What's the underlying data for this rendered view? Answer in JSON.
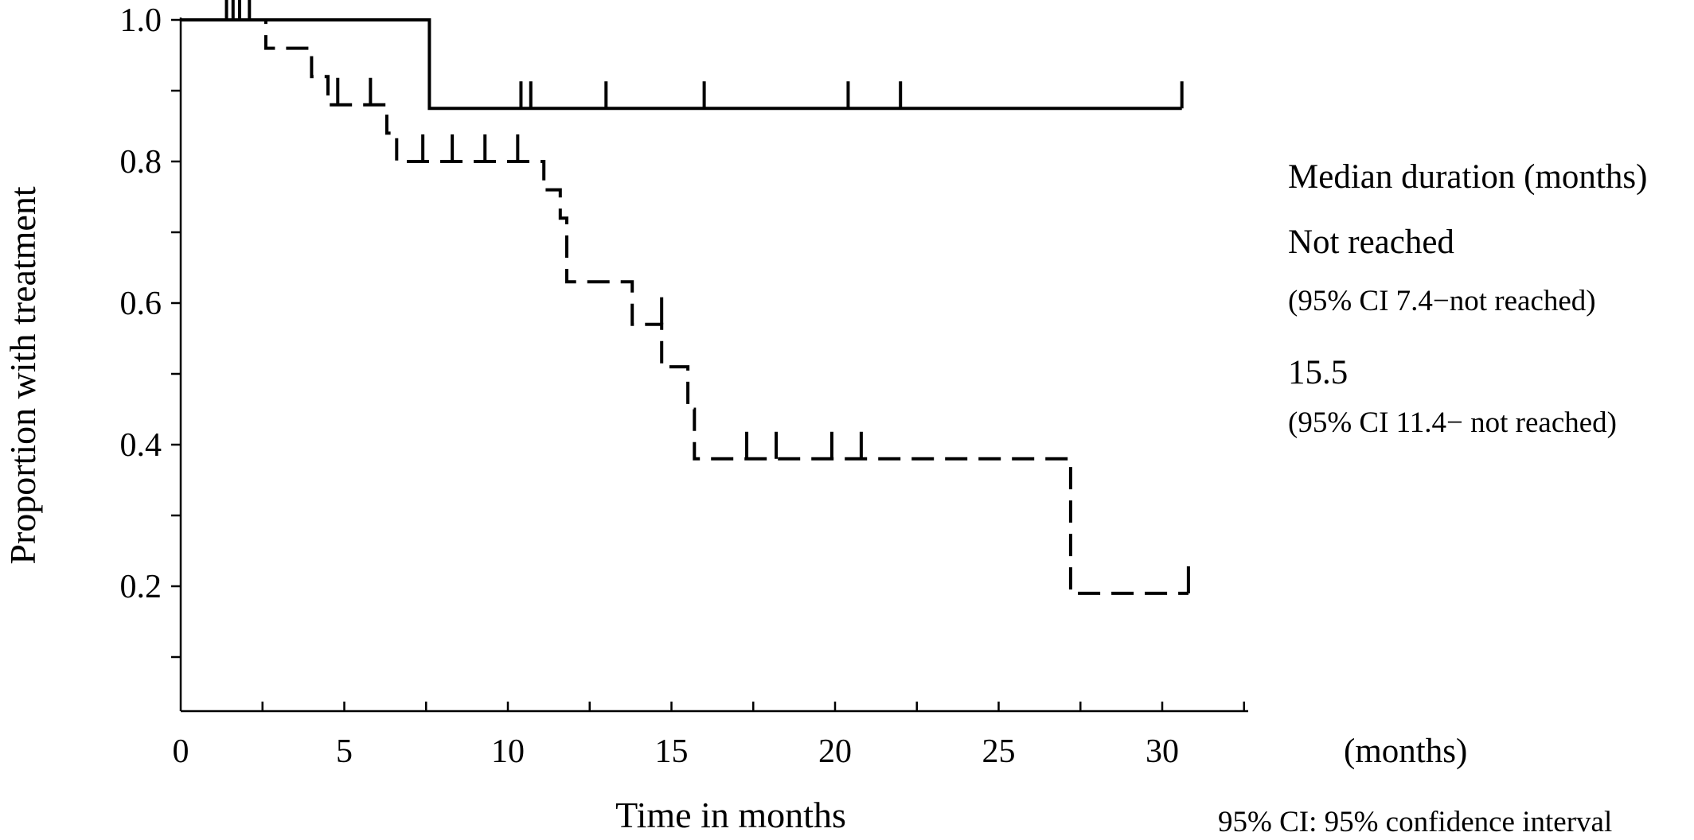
{
  "chart_data": {
    "type": "line",
    "xlabel": "Time in months",
    "ylabel": "Proportion with treatment",
    "xlim": [
      0,
      33
    ],
    "ylim": [
      0.02,
      1.0
    ],
    "x_ticks": [
      "0",
      "5",
      "10",
      "15",
      "20",
      "25",
      "30"
    ],
    "y_ticks": [
      "0.2",
      "0.4",
      "0.6",
      "0.8",
      "1.0"
    ],
    "grid": false,
    "series": [
      {
        "style": "solid",
        "steps": [
          [
            0,
            1.0
          ],
          [
            7.6,
            1.0
          ],
          [
            7.6,
            0.875
          ],
          [
            30.6,
            0.875
          ]
        ],
        "censored": [
          {
            "x": 1.4,
            "y": 1.0
          },
          {
            "x": 1.6,
            "y": 1.0
          },
          {
            "x": 1.8,
            "y": 1.0
          },
          {
            "x": 2.1,
            "y": 1.0
          },
          {
            "x": 10.4,
            "y": 0.875
          },
          {
            "x": 10.7,
            "y": 0.875
          },
          {
            "x": 13.0,
            "y": 0.875
          },
          {
            "x": 16.0,
            "y": 0.875
          },
          {
            "x": 20.4,
            "y": 0.875
          },
          {
            "x": 22.0,
            "y": 0.875
          },
          {
            "x": 30.6,
            "y": 0.875
          }
        ]
      },
      {
        "style": "dashed",
        "steps": [
          [
            0,
            1.0
          ],
          [
            2.6,
            1.0
          ],
          [
            2.6,
            0.96
          ],
          [
            4.0,
            0.96
          ],
          [
            4.0,
            0.92
          ],
          [
            4.5,
            0.92
          ],
          [
            4.5,
            0.88
          ],
          [
            6.3,
            0.88
          ],
          [
            6.3,
            0.84
          ],
          [
            6.6,
            0.84
          ],
          [
            6.6,
            0.8
          ],
          [
            11.1,
            0.8
          ],
          [
            11.1,
            0.76
          ],
          [
            11.6,
            0.76
          ],
          [
            11.6,
            0.72
          ],
          [
            11.8,
            0.72
          ],
          [
            11.8,
            0.63
          ],
          [
            13.8,
            0.63
          ],
          [
            13.8,
            0.57
          ],
          [
            14.7,
            0.57
          ],
          [
            14.7,
            0.51
          ],
          [
            15.5,
            0.51
          ],
          [
            15.5,
            0.45
          ],
          [
            15.7,
            0.45
          ],
          [
            15.7,
            0.38
          ],
          [
            27.2,
            0.38
          ],
          [
            27.2,
            0.19
          ],
          [
            30.8,
            0.19
          ]
        ],
        "censored": [
          {
            "x": 4.8,
            "y": 0.88
          },
          {
            "x": 5.8,
            "y": 0.88
          },
          {
            "x": 7.4,
            "y": 0.8
          },
          {
            "x": 8.3,
            "y": 0.8
          },
          {
            "x": 9.3,
            "y": 0.8
          },
          {
            "x": 10.3,
            "y": 0.8
          },
          {
            "x": 14.7,
            "y": 0.57
          },
          {
            "x": 17.3,
            "y": 0.38
          },
          {
            "x": 18.2,
            "y": 0.38
          },
          {
            "x": 19.9,
            "y": 0.38
          },
          {
            "x": 20.8,
            "y": 0.38
          },
          {
            "x": 30.8,
            "y": 0.19
          }
        ]
      }
    ]
  },
  "side_text": {
    "median_header": "Median duration (months)",
    "value_1": "Not reached",
    "ci_1": "(95% CI 7.4−not reached)",
    "value_2": "15.5",
    "ci_2": "(95% CI 11.4− not reached)",
    "unit": "(months)",
    "footnote": "95% CI: 95% confidence interval"
  }
}
